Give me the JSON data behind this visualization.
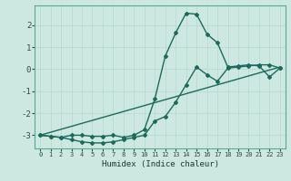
{
  "xlabel": "Humidex (Indice chaleur)",
  "background_color": "#cce8e0",
  "grid_color": "#e8f8f4",
  "line_color": "#1a6b5a",
  "xlim": [
    -0.5,
    23.5
  ],
  "ylim": [
    -3.6,
    2.9
  ],
  "yticks": [
    -3,
    -2,
    -1,
    0,
    1,
    2
  ],
  "xticks": [
    0,
    1,
    2,
    3,
    4,
    5,
    6,
    7,
    8,
    9,
    10,
    11,
    12,
    13,
    14,
    15,
    16,
    17,
    18,
    19,
    20,
    21,
    22,
    23
  ],
  "series1_x": [
    0,
    1,
    2,
    3,
    4,
    5,
    6,
    7,
    8,
    9,
    10,
    11,
    12,
    13,
    14,
    15,
    16,
    17,
    18,
    19,
    20,
    21,
    22,
    23
  ],
  "series1_y": [
    -3.0,
    -3.05,
    -3.1,
    -3.2,
    -3.3,
    -3.35,
    -3.35,
    -3.3,
    -3.2,
    -3.1,
    -3.0,
    -2.35,
    -2.15,
    -1.5,
    -0.7,
    0.1,
    -0.25,
    -0.55,
    0.05,
    0.1,
    0.15,
    0.2,
    0.2,
    0.05
  ],
  "series2_x": [
    0,
    1,
    2,
    3,
    4,
    5,
    6,
    7,
    8,
    9,
    10,
    11,
    12,
    13,
    14,
    15,
    16,
    17,
    18,
    19,
    20,
    21,
    22,
    23
  ],
  "series2_y": [
    -3.0,
    -3.05,
    -3.1,
    -3.0,
    -3.0,
    -3.05,
    -3.05,
    -3.0,
    -3.1,
    -3.0,
    -2.75,
    -1.35,
    0.6,
    1.65,
    2.55,
    2.5,
    1.6,
    1.2,
    0.1,
    0.15,
    0.2,
    0.15,
    -0.35,
    0.05
  ],
  "series3_x": [
    0,
    23
  ],
  "series3_y": [
    -3.0,
    0.1
  ]
}
